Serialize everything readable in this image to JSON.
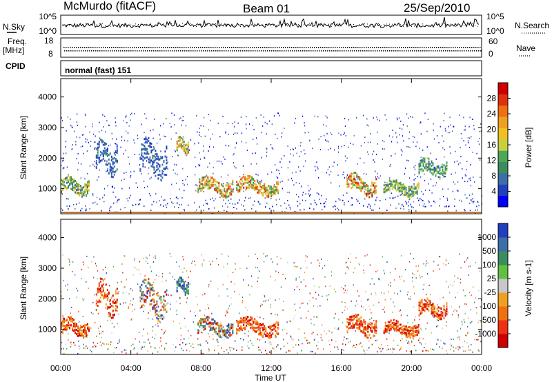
{
  "header": {
    "station": "McMurdo (fitACF)",
    "beam": "Beam 01",
    "date": "25/Sep/2010"
  },
  "side_labels": {
    "nsky": "N.Sky",
    "nsearch": "N.Search",
    "freq_line1": "Freq.",
    "freq_line2": "[MHz]",
    "nave": "Nave",
    "cpid": "CPID"
  },
  "noise_panel": {
    "left_ticks": [
      "10^5",
      "10^0"
    ],
    "right_ticks": [
      "10^5",
      "10^0"
    ]
  },
  "freq_panel": {
    "left_ticks": [
      "18",
      "8"
    ],
    "right_ticks": [
      "60",
      "0"
    ]
  },
  "cpid_panel": {
    "label": "normal (fast) 151"
  },
  "chart_data": [
    {
      "type": "heatmap",
      "name": "power",
      "ylabel": "Slant Range [km]",
      "xlabel": "Time UT",
      "xlim_hours": [
        0,
        24
      ],
      "ylim_km": [
        180,
        4600
      ],
      "y_ticks": [
        "4000",
        "3000",
        "2000",
        "1000"
      ],
      "y_tick_values": [
        4000,
        3000,
        2000,
        1000
      ],
      "x_ticks": [
        "00:00",
        "04:00",
        "08:00",
        "12:00",
        "16:00",
        "20:00",
        "00:00"
      ],
      "colorbar": {
        "label": "Power [dB]",
        "tick_labels": [
          "28",
          "24",
          "20",
          "16",
          "12",
          "8",
          "4"
        ],
        "tick_values": [
          28,
          24,
          20,
          16,
          12,
          8,
          4
        ],
        "range": [
          0,
          30
        ],
        "colors": [
          "#0000ff",
          "#2040c0",
          "#3c6ea8",
          "#3c8c60",
          "#4ca858",
          "#c8d040",
          "#f0c020",
          "#f0a020",
          "#f07010",
          "#e03010",
          "#d00000"
        ]
      },
      "echo_regions": [
        {
          "t_start": 0.0,
          "t_end": 1.6,
          "r_low": 800,
          "r_high": 1400,
          "level": 0.45
        },
        {
          "t_start": 2.0,
          "t_end": 3.2,
          "r_low": 1500,
          "r_high": 2600,
          "level": 0.2
        },
        {
          "t_start": 4.5,
          "t_end": 6.0,
          "r_low": 1400,
          "r_high": 2600,
          "level": 0.2
        },
        {
          "t_start": 6.6,
          "t_end": 7.3,
          "r_low": 2200,
          "r_high": 2700,
          "level": 0.55
        },
        {
          "t_start": 7.8,
          "t_end": 9.8,
          "r_low": 800,
          "r_high": 1400,
          "level": 0.6
        },
        {
          "t_start": 10.0,
          "t_end": 12.4,
          "r_low": 800,
          "r_high": 1400,
          "level": 0.6
        },
        {
          "t_start": 16.3,
          "t_end": 18.0,
          "r_low": 800,
          "r_high": 1500,
          "level": 0.65
        },
        {
          "t_start": 18.4,
          "t_end": 20.4,
          "r_low": 800,
          "r_high": 1300,
          "level": 0.4
        },
        {
          "t_start": 20.4,
          "t_end": 22.0,
          "r_low": 1400,
          "r_high": 2000,
          "level": 0.35
        }
      ]
    },
    {
      "type": "heatmap",
      "name": "velocity",
      "ylabel": "Slant Range [km]",
      "xlabel": "Time UT",
      "xlim_hours": [
        0,
        24
      ],
      "ylim_km": [
        180,
        4600
      ],
      "y_ticks": [
        "4000",
        "3000",
        "2000",
        "1000"
      ],
      "y_tick_values": [
        4000,
        3000,
        2000,
        1000
      ],
      "x_ticks": [
        "00:00",
        "04:00",
        "08:00",
        "12:00",
        "16:00",
        "20:00",
        "00:00"
      ],
      "colorbar": {
        "label": "Velocity [m s-1]",
        "tick_labels": [
          "1000",
          "500",
          "100",
          "25",
          "-25",
          "-100",
          "-500",
          "-1000"
        ],
        "tick_values": [
          1000,
          500,
          100,
          25,
          -25,
          -100,
          -500,
          -1000
        ],
        "colors": [
          "#d00000",
          "#f03010",
          "#f07010",
          "#f0a020",
          "#c8c8c8",
          "#60c040",
          "#3c8c60",
          "#3c6ea8",
          "#2040c0"
        ]
      },
      "echo_regions": [
        {
          "t_start": 0.0,
          "t_end": 1.6,
          "r_low": 800,
          "r_high": 1400,
          "sign": "negative"
        },
        {
          "t_start": 2.0,
          "t_end": 3.2,
          "r_low": 1500,
          "r_high": 2600,
          "sign": "negative"
        },
        {
          "t_start": 4.5,
          "t_end": 6.0,
          "r_low": 1400,
          "r_high": 2600,
          "sign": "mixed"
        },
        {
          "t_start": 6.6,
          "t_end": 7.3,
          "r_low": 2200,
          "r_high": 2700,
          "sign": "positive"
        },
        {
          "t_start": 7.8,
          "t_end": 9.8,
          "r_low": 800,
          "r_high": 1400,
          "sign": "mixed"
        },
        {
          "t_start": 10.0,
          "t_end": 12.4,
          "r_low": 800,
          "r_high": 1400,
          "sign": "negative"
        },
        {
          "t_start": 16.3,
          "t_end": 18.0,
          "r_low": 800,
          "r_high": 1500,
          "sign": "negative"
        },
        {
          "t_start": 18.4,
          "t_end": 20.4,
          "r_low": 800,
          "r_high": 1300,
          "sign": "negative"
        },
        {
          "t_start": 20.4,
          "t_end": 22.0,
          "r_low": 1400,
          "r_high": 2000,
          "sign": "negative"
        }
      ]
    }
  ]
}
